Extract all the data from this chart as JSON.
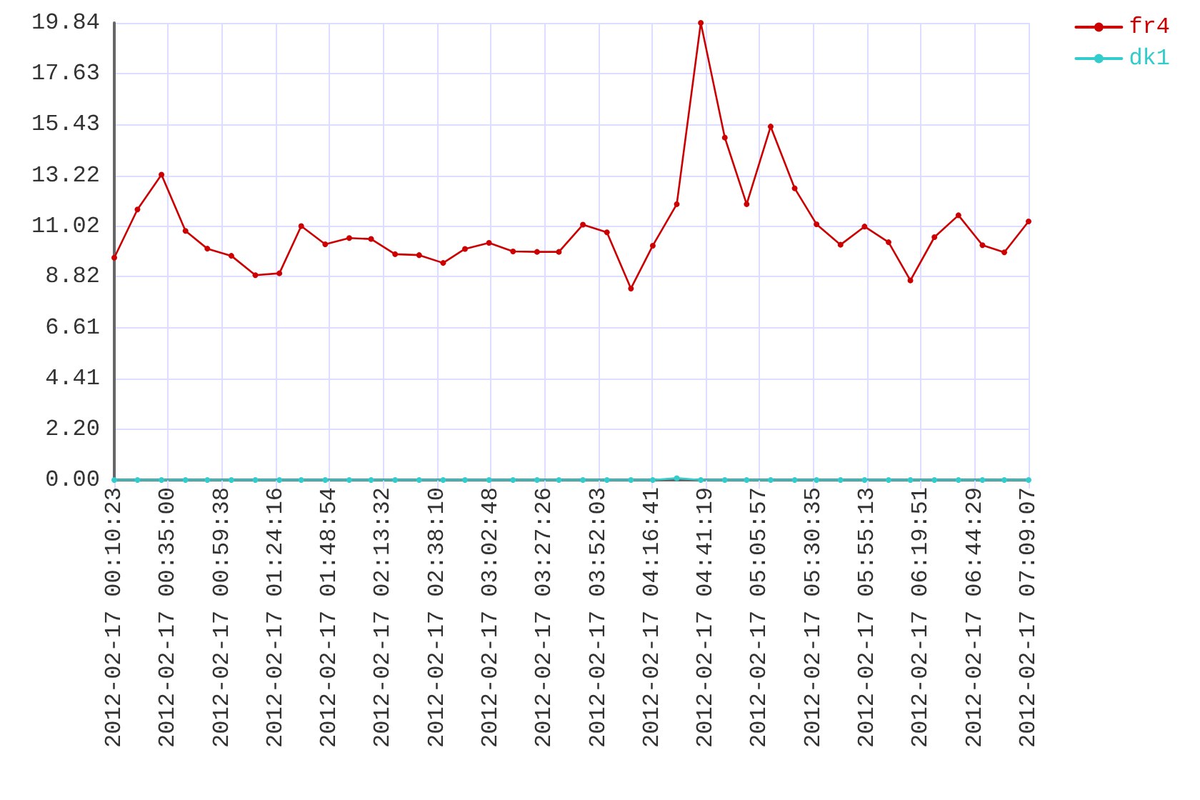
{
  "chart_data": {
    "type": "line",
    "x": [
      "2012-02-17T00:10:23",
      "2012-02-17T00:21",
      "2012-02-17T00:32",
      "2012-02-17T00:43",
      "2012-02-17T00:53",
      "2012-02-17T01:04",
      "2012-02-17T01:15",
      "2012-02-17T01:26",
      "2012-02-17T01:36",
      "2012-02-17T01:47",
      "2012-02-17T01:58",
      "2012-02-17T02:08",
      "2012-02-17T02:19",
      "2012-02-17T02:30",
      "2012-02-17T02:41",
      "2012-02-17T02:51",
      "2012-02-17T03:02",
      "2012-02-17T03:13",
      "2012-02-17T03:24",
      "2012-02-17T03:34",
      "2012-02-17T03:45",
      "2012-02-17T03:56",
      "2012-02-17T04:07",
      "2012-02-17T04:17",
      "2012-02-17T04:28",
      "2012-02-17T04:39",
      "2012-02-17T04:50",
      "2012-02-17T05:00",
      "2012-02-17T05:11",
      "2012-02-17T05:22",
      "2012-02-17T05:32",
      "2012-02-17T05:43",
      "2012-02-17T05:54",
      "2012-02-17T06:05",
      "2012-02-17T06:15",
      "2012-02-17T06:26",
      "2012-02-17T06:37",
      "2012-02-17T06:48",
      "2012-02-17T06:58",
      "2012-02-17T07:09:07"
    ],
    "series": [
      {
        "name": "fr4",
        "color": "#cc0000",
        "values": [
          9.65,
          11.74,
          13.25,
          10.81,
          10.04,
          9.73,
          8.89,
          8.97,
          11.02,
          10.23,
          10.5,
          10.46,
          9.8,
          9.76,
          9.42,
          10.03,
          10.29,
          9.92,
          9.9,
          9.9,
          11.08,
          10.75,
          8.31,
          10.17,
          11.97,
          19.84,
          14.86,
          11.97,
          15.34,
          12.66,
          11.1,
          10.21,
          11,
          10.32,
          8.66,
          10.54,
          11.49,
          10.19,
          9.88,
          11.22
        ]
      },
      {
        "name": "dk1",
        "color": "#33cccc",
        "values": [
          0,
          0,
          0,
          0,
          0,
          0,
          0,
          0,
          0,
          0,
          0,
          0,
          0,
          0,
          0,
          0,
          0,
          0,
          0,
          0,
          0,
          0,
          0,
          0,
          0.08,
          0,
          0,
          0,
          0,
          0,
          0,
          0,
          0,
          0,
          0,
          0,
          0,
          0,
          0,
          0
        ]
      }
    ],
    "xlim": [
      "2012-02-17T00:10:23",
      "2012-02-17T07:09:07"
    ],
    "xticks": [
      {
        "value": "2012-02-17T00:10:23",
        "label": "2012-02-17 00:10:23"
      },
      {
        "value": "2012-02-17T00:35:00",
        "label": "2012-02-17 00:35:00"
      },
      {
        "value": "2012-02-17T00:59:38",
        "label": "2012-02-17 00:59:38"
      },
      {
        "value": "2012-02-17T01:24:16",
        "label": "2012-02-17 01:24:16"
      },
      {
        "value": "2012-02-17T01:48:54",
        "label": "2012-02-17 01:48:54"
      },
      {
        "value": "2012-02-17T02:13:32",
        "label": "2012-02-17 02:13:32"
      },
      {
        "value": "2012-02-17T02:38:10",
        "label": "2012-02-17 02:38:10"
      },
      {
        "value": "2012-02-17T03:02:48",
        "label": "2012-02-17 03:02:48"
      },
      {
        "value": "2012-02-17T03:27:26",
        "label": "2012-02-17 03:27:26"
      },
      {
        "value": "2012-02-17T03:52:03",
        "label": "2012-02-17 03:52:03"
      },
      {
        "value": "2012-02-17T04:16:41",
        "label": "2012-02-17 04:16:41"
      },
      {
        "value": "2012-02-17T04:41:19",
        "label": "2012-02-17 04:41:19"
      },
      {
        "value": "2012-02-17T05:05:57",
        "label": "2012-02-17 05:05:57"
      },
      {
        "value": "2012-02-17T05:30:35",
        "label": "2012-02-17 05:30:35"
      },
      {
        "value": "2012-02-17T05:55:13",
        "label": "2012-02-17 05:55:13"
      },
      {
        "value": "2012-02-17T06:19:51",
        "label": "2012-02-17 06:19:51"
      },
      {
        "value": "2012-02-17T06:44:29",
        "label": "2012-02-17 06:44:29"
      },
      {
        "value": "2012-02-17T07:09:07",
        "label": "2012-02-17 07:09:07"
      }
    ],
    "ylim": [
      0,
      19.84
    ],
    "yticks": [
      {
        "value": 0,
        "label": "0.00"
      },
      {
        "value": 2.2,
        "label": "2.20"
      },
      4.41,
      6.61,
      8.82,
      11.02,
      13.22,
      15.43,
      17.63,
      19.84
    ],
    "grid": true,
    "legend": "top right",
    "marker": "circle",
    "line_style": "solid"
  }
}
